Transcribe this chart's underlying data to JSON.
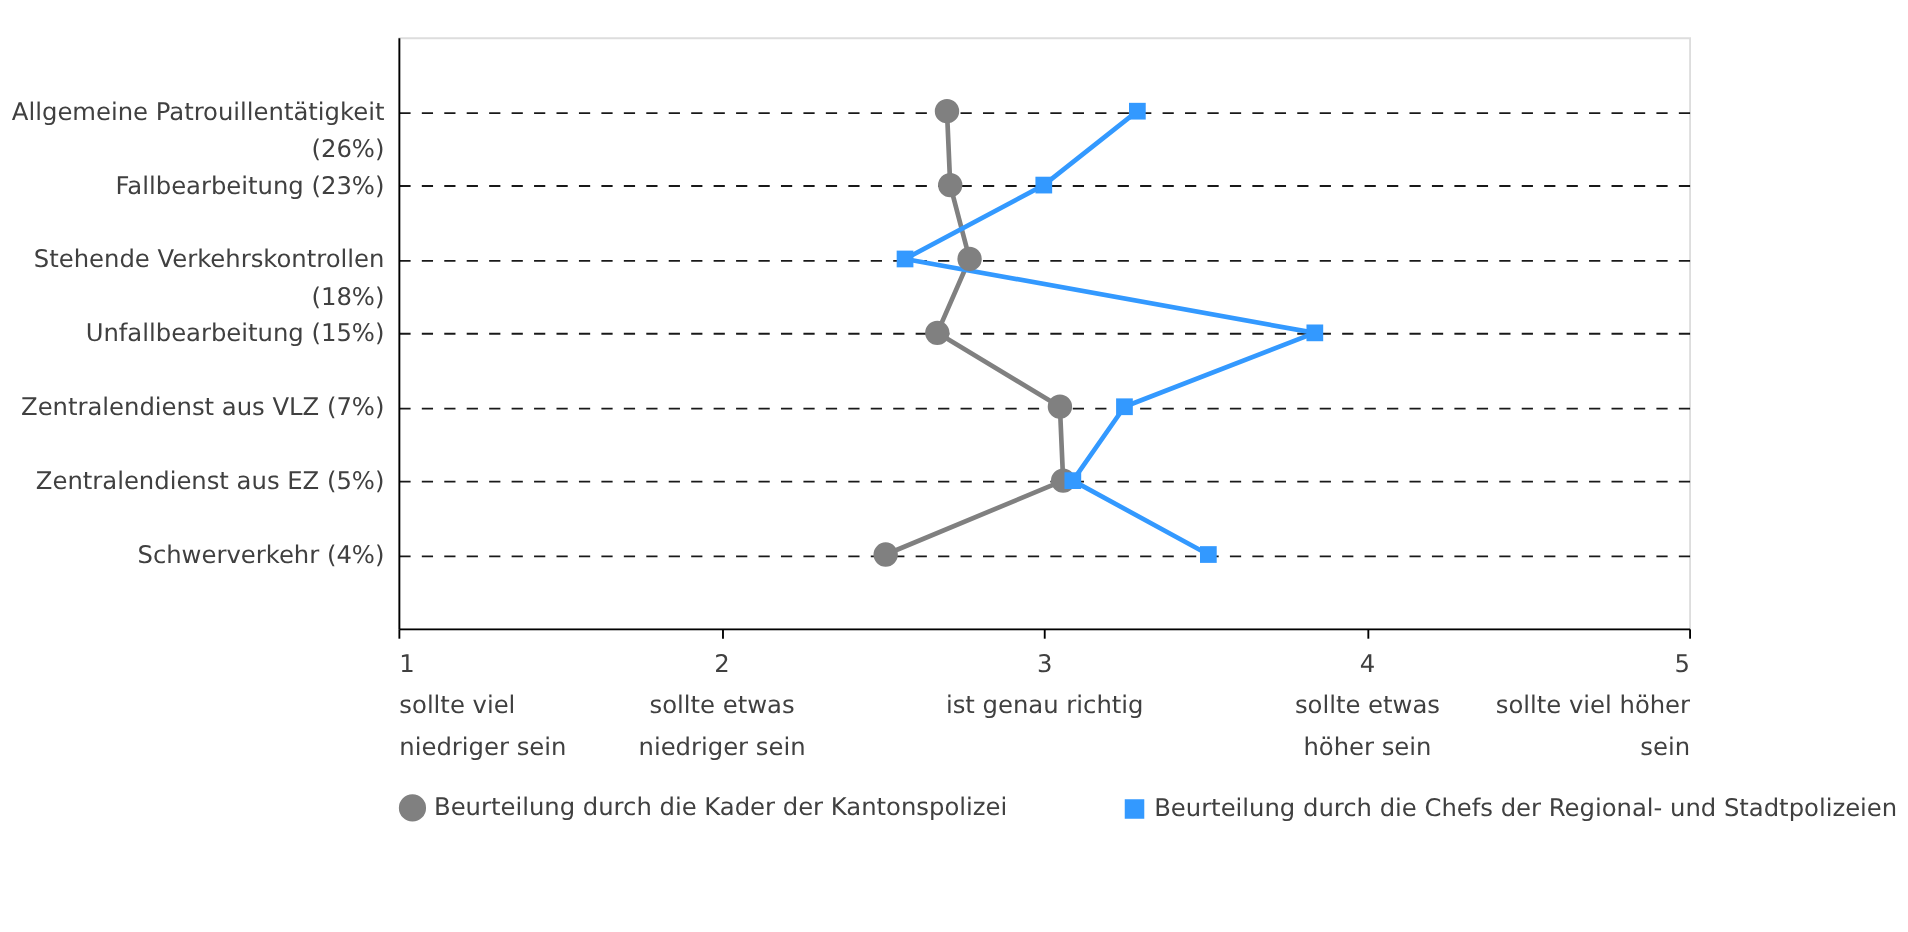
{
  "chart_data": {
    "type": "line",
    "orientation": "horizontal",
    "categories": [
      "Allgemeine Patrouillentätigkeit (26%)",
      "Fallbearbeitung (23%)",
      "Stehende Verkehrskontrollen (18%)",
      "Unfallbearbeitung (15%)",
      "Zentralendienst aus VLZ (7%)",
      "Zentralendienst aus EZ (5%)",
      "Schwerverkehr (4%)"
    ],
    "series": [
      {
        "name": "Beurteilung durch die Kader der Kantonspolizei",
        "color": "#808080",
        "marker": "circle",
        "values": [
          2.7,
          2.71,
          2.77,
          2.67,
          3.05,
          3.06,
          2.51
        ]
      },
      {
        "name": "Beurteilung durch die Chefs der Regional- und Stadtpolizeien",
        "color": "#3399ff",
        "marker": "square",
        "values": [
          3.29,
          3.0,
          2.57,
          3.84,
          3.25,
          3.09,
          3.51
        ]
      }
    ],
    "xlim": [
      1,
      5
    ],
    "xticks": [
      {
        "value": 1,
        "label": "1\nsollte viel\nniedriger sein"
      },
      {
        "value": 2,
        "label": "2\nsollte etwas\nniedriger sein"
      },
      {
        "value": 3,
        "label": "3\nist genau richtig"
      },
      {
        "value": 4,
        "label": "4\nsollte etwas\nhöher sein"
      },
      {
        "value": 5,
        "label": "5\nsollte viel höher\nsein"
      }
    ],
    "grid": "y",
    "legend": "bottom",
    "line_style": "solid"
  }
}
